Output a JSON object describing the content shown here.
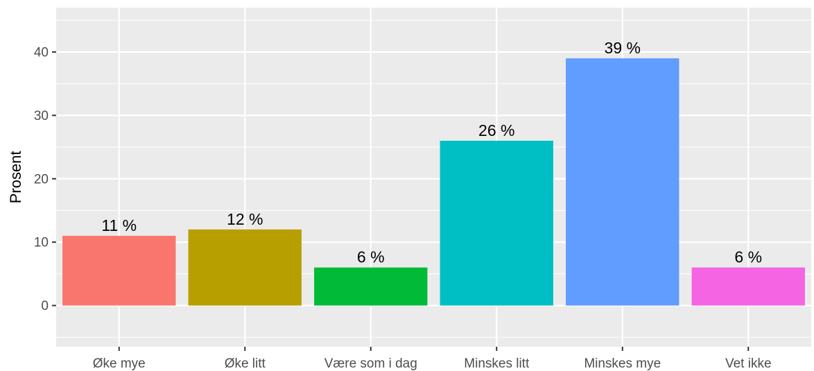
{
  "chart_data": {
    "type": "bar",
    "categories": [
      "Øke mye",
      "Øke litt",
      "Være som i dag",
      "Minskes litt",
      "Minskes mye",
      "Vet ikke"
    ],
    "values": [
      11,
      12,
      6,
      26,
      39,
      6
    ],
    "data_labels": [
      "11 %",
      "12 %",
      "6 %",
      "26 %",
      "39 %",
      "6 %"
    ],
    "colors": [
      "#F8766D",
      "#B79F00",
      "#00BA38",
      "#00BFC4",
      "#619CFF",
      "#F564E3"
    ],
    "xlabel": "",
    "ylabel": "Prosent",
    "ylim": [
      -6.5,
      47
    ],
    "yticks": [
      0,
      10,
      20,
      30,
      40
    ],
    "grid": true,
    "panel_background": "#EBEBEB",
    "legend": "none"
  }
}
